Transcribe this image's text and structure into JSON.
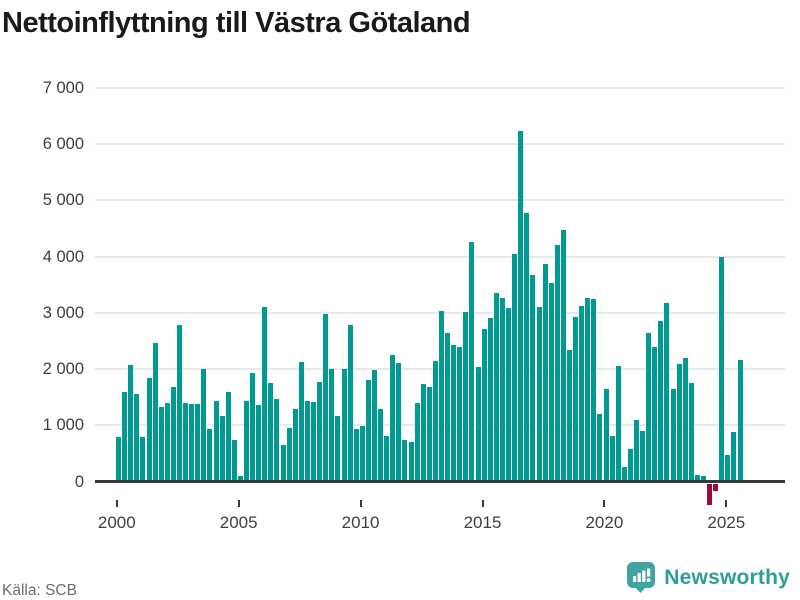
{
  "title": "Nettoinflyttning till Västra Götaland",
  "source_label": "Källa: SCB",
  "branding": {
    "name": "Newsworthy",
    "icon": "bar-chart-pin-icon"
  },
  "colors": {
    "bar": "#009a92",
    "bar_negative": "#990a41",
    "grid": "#e8e8e8",
    "axis": "#3a3a3a",
    "title_text": "#1a1a1a",
    "tick_text": "#3f3f3f",
    "source_text": "#6b6b74",
    "logo_badge": "#3fa3a0",
    "logo_text": "#2f9f96"
  },
  "chart_data": {
    "type": "bar",
    "title": "Nettoinflyttning till Västra Götaland",
    "xlabel": "",
    "ylabel": "",
    "x_start": "2000Q1",
    "frequency": "quarterly",
    "values": [
      790,
      1590,
      2070,
      1550,
      790,
      1840,
      2460,
      1320,
      1400,
      1680,
      2780,
      1390,
      1380,
      1380,
      2000,
      930,
      1430,
      1170,
      1600,
      740,
      100,
      1430,
      1930,
      1360,
      3100,
      1750,
      1470,
      650,
      950,
      1300,
      2130,
      1430,
      1420,
      1770,
      2980,
      2010,
      1170,
      2010,
      2780,
      930,
      990,
      1800,
      1985,
      1290,
      820,
      2260,
      2110,
      750,
      710,
      1395,
      1730,
      1690,
      2140,
      3030,
      2650,
      2430,
      2390,
      3010,
      4250,
      2040,
      2710,
      2910,
      3360,
      3260,
      3080,
      4040,
      6230,
      4780,
      3670,
      3100,
      3870,
      3530,
      4200,
      4470,
      2340,
      2930,
      3120,
      3260,
      3250,
      1200,
      1640,
      810,
      2050,
      270,
      590,
      1090,
      900,
      2650,
      2400,
      2850,
      3180,
      1640,
      2085,
      2190,
      1760,
      120,
      110,
      -380,
      -140,
      4000,
      475,
      880,
      2170
    ],
    "ylim": [
      -500,
      7000
    ],
    "yticks": [
      0,
      1000,
      2000,
      3000,
      4000,
      5000,
      6000,
      7000
    ],
    "ytick_labels": [
      "0",
      "1 000",
      "2 000",
      "3 000",
      "4 000",
      "5 000",
      "6 000",
      "7 000"
    ],
    "xticks": [
      2000,
      2005,
      2010,
      2015,
      2020,
      2025
    ],
    "grid": "horizontal",
    "legend": "none"
  }
}
